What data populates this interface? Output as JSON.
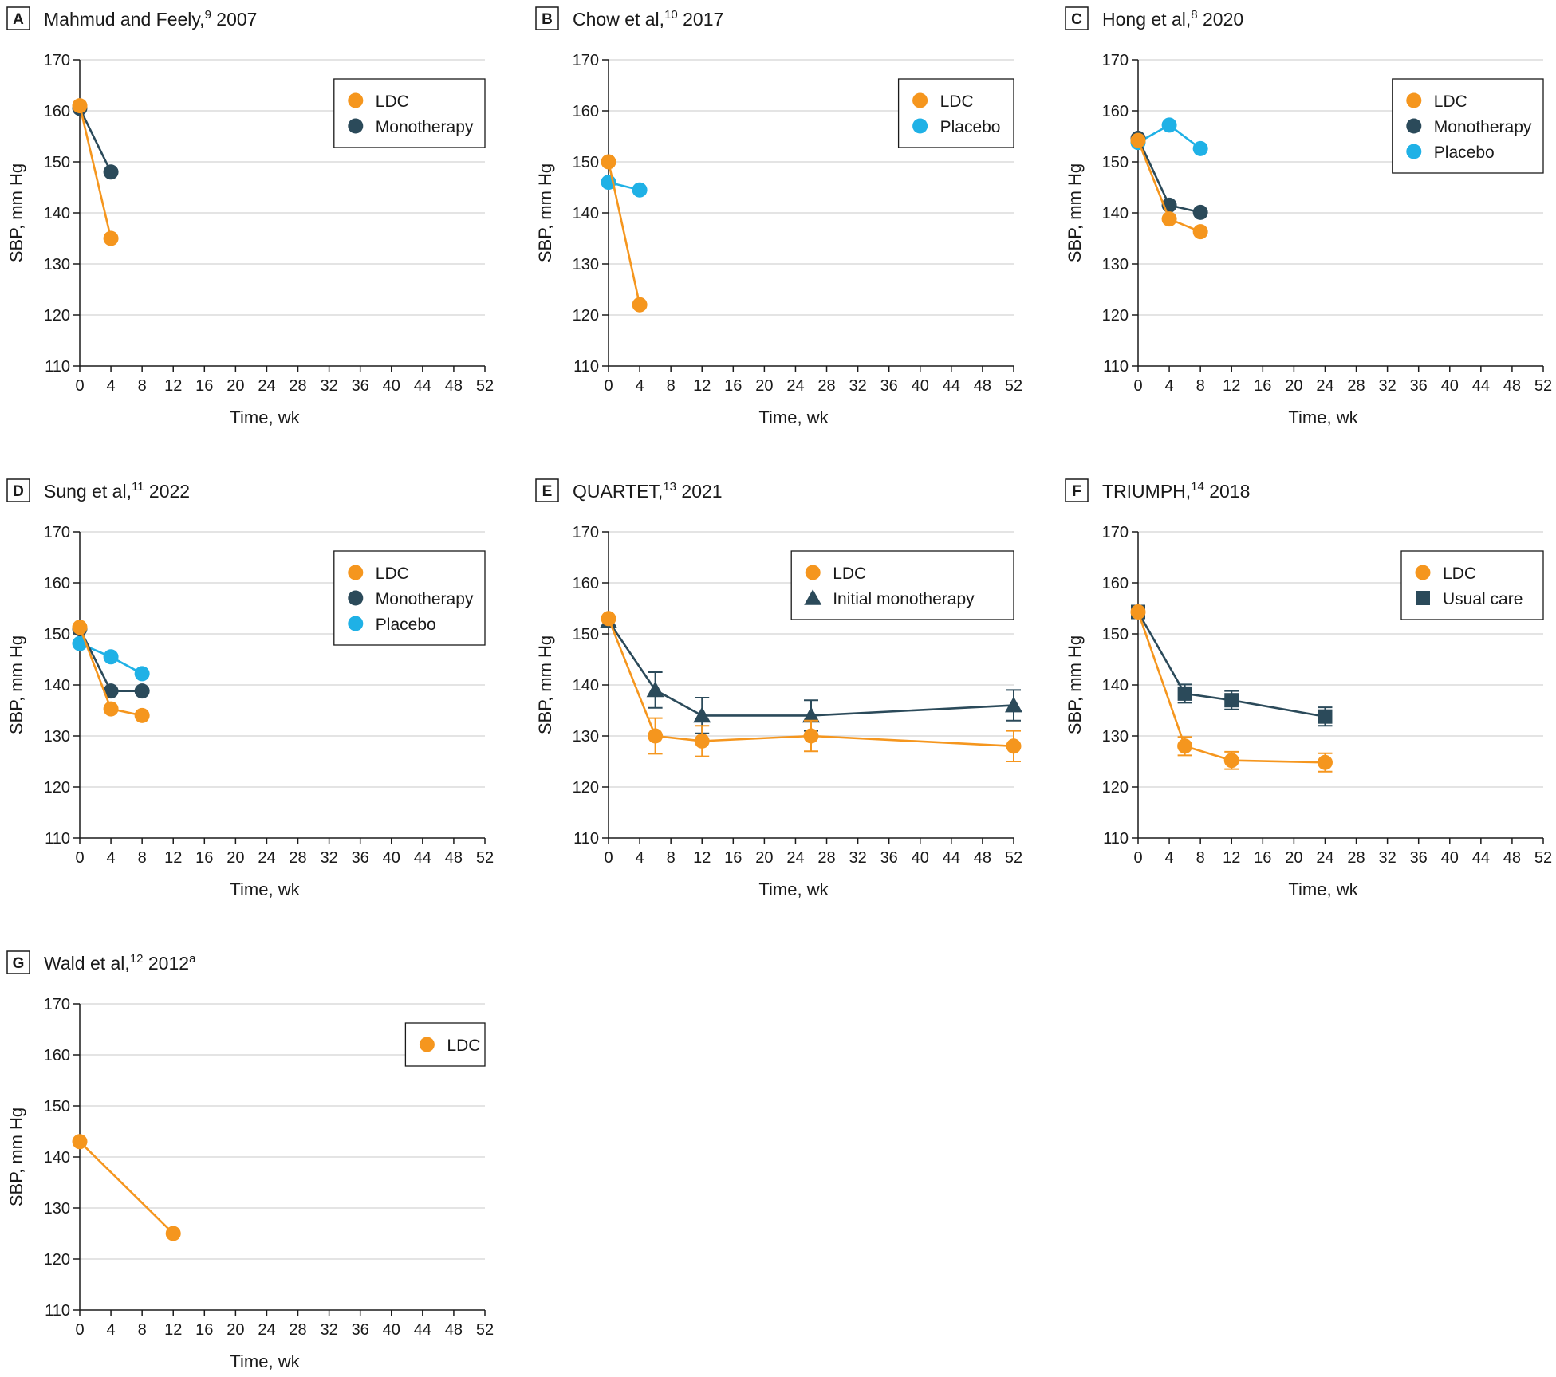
{
  "colors": {
    "LDC": "#f5961e",
    "Monotherapy": "#2b4a5a",
    "Placebo": "#1fb1e6",
    "Initial monotherapy": "#2b4a5a",
    "Usual care": "#2b4a5a"
  },
  "chart_data": [
    {
      "panel": "A",
      "title": "Mahmud and Feely,",
      "title_sup": "9",
      "title_suffix": " 2007",
      "type": "line",
      "xlabel": "Time, wk",
      "ylabel": "SBP, mm Hg",
      "xlim": [
        0,
        52
      ],
      "ylim": [
        110,
        170
      ],
      "xticks": [
        0,
        4,
        8,
        12,
        16,
        20,
        24,
        28,
        32,
        36,
        40,
        44,
        48,
        52
      ],
      "yticks": [
        110,
        120,
        130,
        140,
        150,
        160,
        170
      ],
      "legend_position": "top-right",
      "legend": [
        "LDC",
        "Monotherapy"
      ],
      "series": [
        {
          "name": "Monotherapy",
          "marker": "circle",
          "x": [
            0,
            4
          ],
          "y": [
            160.5,
            148
          ]
        },
        {
          "name": "LDC",
          "marker": "circle",
          "x": [
            0,
            4
          ],
          "y": [
            161,
            135
          ]
        }
      ]
    },
    {
      "panel": "B",
      "title": "Chow et al,",
      "title_sup": "10",
      "title_suffix": " 2017",
      "type": "line",
      "xlabel": "Time, wk",
      "ylabel": "SBP, mm Hg",
      "xlim": [
        0,
        52
      ],
      "ylim": [
        110,
        170
      ],
      "xticks": [
        0,
        4,
        8,
        12,
        16,
        20,
        24,
        28,
        32,
        36,
        40,
        44,
        48,
        52
      ],
      "yticks": [
        110,
        120,
        130,
        140,
        150,
        160,
        170
      ],
      "legend_position": "top-right",
      "legend": [
        "LDC",
        "Placebo"
      ],
      "series": [
        {
          "name": "Placebo",
          "marker": "circle",
          "x": [
            0,
            4
          ],
          "y": [
            146,
            144.5
          ]
        },
        {
          "name": "LDC",
          "marker": "circle",
          "x": [
            0,
            4
          ],
          "y": [
            150,
            122
          ]
        }
      ]
    },
    {
      "panel": "C",
      "title": "Hong et al,",
      "title_sup": "8",
      "title_suffix": " 2020",
      "type": "line",
      "xlabel": "Time, wk",
      "ylabel": "SBP, mm Hg",
      "xlim": [
        0,
        52
      ],
      "ylim": [
        110,
        170
      ],
      "xticks": [
        0,
        4,
        8,
        12,
        16,
        20,
        24,
        28,
        32,
        36,
        40,
        44,
        48,
        52
      ],
      "yticks": [
        110,
        120,
        130,
        140,
        150,
        160,
        170
      ],
      "legend_position": "top-right",
      "legend": [
        "LDC",
        "Monotherapy",
        "Placebo"
      ],
      "series": [
        {
          "name": "Placebo",
          "marker": "circle",
          "x": [
            0,
            4,
            8
          ],
          "y": [
            153.8,
            157.2,
            152.6
          ]
        },
        {
          "name": "Monotherapy",
          "marker": "circle",
          "x": [
            0,
            4,
            8
          ],
          "y": [
            154.6,
            141.5,
            140.1
          ]
        },
        {
          "name": "LDC",
          "marker": "circle",
          "x": [
            0,
            4,
            8
          ],
          "y": [
            154.2,
            138.8,
            136.3
          ]
        }
      ]
    },
    {
      "panel": "D",
      "title": "Sung et al,",
      "title_sup": "11",
      "title_suffix": " 2022",
      "type": "line",
      "xlabel": "Time, wk",
      "ylabel": "SBP, mm Hg",
      "xlim": [
        0,
        52
      ],
      "ylim": [
        110,
        170
      ],
      "xticks": [
        0,
        4,
        8,
        12,
        16,
        20,
        24,
        28,
        32,
        36,
        40,
        44,
        48,
        52
      ],
      "yticks": [
        110,
        120,
        130,
        140,
        150,
        160,
        170
      ],
      "legend_position": "top-right",
      "legend": [
        "LDC",
        "Monotherapy",
        "Placebo"
      ],
      "series": [
        {
          "name": "Placebo",
          "marker": "circle",
          "x": [
            0,
            4,
            8
          ],
          "y": [
            148.1,
            145.5,
            142.2
          ]
        },
        {
          "name": "Monotherapy",
          "marker": "circle",
          "x": [
            0,
            4,
            8
          ],
          "y": [
            151,
            138.8,
            138.8
          ]
        },
        {
          "name": "LDC",
          "marker": "circle",
          "x": [
            0,
            4,
            8
          ],
          "y": [
            151.3,
            135.3,
            134
          ]
        }
      ]
    },
    {
      "panel": "E",
      "title": "QUARTET,",
      "title_sup": "13",
      "title_suffix": " 2021",
      "type": "line",
      "xlabel": "Time, wk",
      "ylabel": "SBP, mm Hg",
      "xlim": [
        0,
        52
      ],
      "ylim": [
        110,
        170
      ],
      "xticks": [
        0,
        4,
        8,
        12,
        16,
        20,
        24,
        28,
        32,
        36,
        40,
        44,
        48,
        52
      ],
      "yticks": [
        110,
        120,
        130,
        140,
        150,
        160,
        170
      ],
      "legend_position": "top-right",
      "legend": [
        "LDC",
        "Initial monotherapy"
      ],
      "series": [
        {
          "name": "Initial monotherapy",
          "marker": "triangle",
          "x": [
            0,
            6,
            12,
            26,
            52
          ],
          "y": [
            152.5,
            139,
            134,
            134,
            136
          ],
          "err": [
            0,
            3.5,
            3.5,
            3,
            3
          ]
        },
        {
          "name": "LDC",
          "marker": "circle",
          "x": [
            0,
            6,
            12,
            26,
            52
          ],
          "y": [
            153,
            130,
            129,
            130,
            128
          ],
          "err": [
            0,
            3.5,
            3,
            3,
            3
          ]
        }
      ]
    },
    {
      "panel": "F",
      "title": "TRIUMPH,",
      "title_sup": "14",
      "title_suffix": " 2018",
      "type": "line",
      "xlabel": "Time, wk",
      "ylabel": "SBP, mm Hg",
      "xlim": [
        0,
        52
      ],
      "ylim": [
        110,
        170
      ],
      "xticks": [
        0,
        4,
        8,
        12,
        16,
        20,
        24,
        28,
        32,
        36,
        40,
        44,
        48,
        52
      ],
      "yticks": [
        110,
        120,
        130,
        140,
        150,
        160,
        170
      ],
      "legend_position": "top-right",
      "legend": [
        "LDC",
        "Usual care"
      ],
      "series": [
        {
          "name": "Usual care",
          "marker": "square",
          "x": [
            0,
            6,
            12,
            24
          ],
          "y": [
            154.3,
            138.3,
            137,
            133.8
          ],
          "err": [
            0.5,
            1.8,
            1.8,
            1.8
          ]
        },
        {
          "name": "LDC",
          "marker": "circle",
          "x": [
            0,
            6,
            12,
            24
          ],
          "y": [
            154.3,
            128,
            125.2,
            124.8
          ],
          "err": [
            0,
            1.8,
            1.7,
            1.8
          ]
        }
      ]
    },
    {
      "panel": "G",
      "title": "Wald et al,",
      "title_sup": "12",
      "title_suffix": " 2012",
      "title_sup2": "a",
      "type": "line",
      "xlabel": "Time, wk",
      "ylabel": "SBP, mm Hg",
      "xlim": [
        0,
        52
      ],
      "ylim": [
        110,
        170
      ],
      "xticks": [
        0,
        4,
        8,
        12,
        16,
        20,
        24,
        28,
        32,
        36,
        40,
        44,
        48,
        52
      ],
      "yticks": [
        110,
        120,
        130,
        140,
        150,
        160,
        170
      ],
      "legend_position": "top-right",
      "legend": [
        "LDC"
      ],
      "series": [
        {
          "name": "LDC",
          "marker": "circle",
          "x": [
            0,
            12
          ],
          "y": [
            143,
            125
          ]
        }
      ]
    }
  ]
}
